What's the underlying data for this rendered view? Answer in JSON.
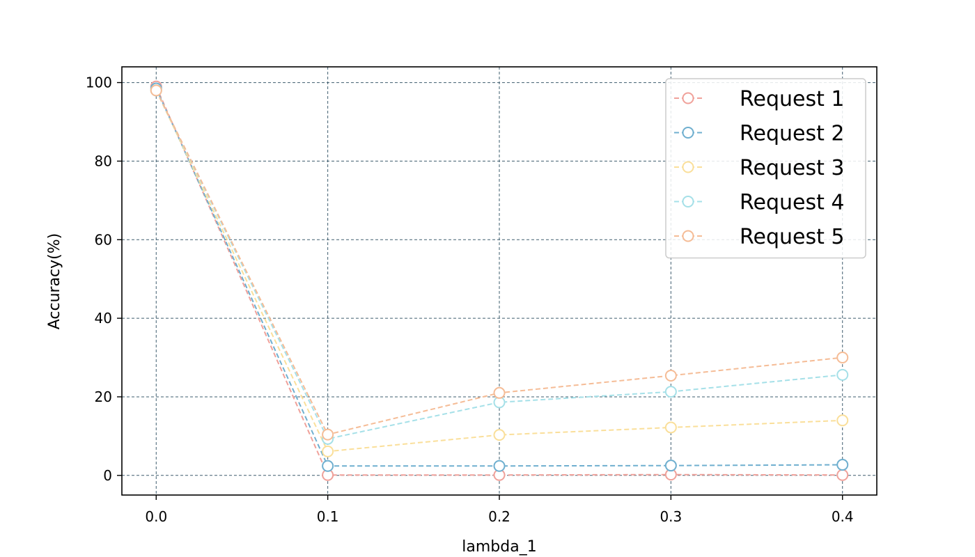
{
  "chart_data": {
    "type": "line",
    "title": "",
    "xlabel": "lambda_1",
    "ylabel": "Accuracy(%)",
    "x": [
      0.0,
      0.1,
      0.2,
      0.3,
      0.4
    ],
    "x_tick_labels": [
      "0.0",
      "0.1",
      "0.2",
      "0.3",
      "0.4"
    ],
    "y_ticks": [
      0,
      20,
      40,
      60,
      80,
      100
    ],
    "y_tick_labels": [
      "0",
      "20",
      "40",
      "60",
      "80",
      "100"
    ],
    "xlim": [
      -0.02,
      0.42
    ],
    "ylim": [
      -5,
      104
    ],
    "grid": true,
    "legend_position": "top-right",
    "series": [
      {
        "name": "Request 1",
        "color": "#F0A19A",
        "values": [
          99.0,
          0.1,
          0.1,
          0.2,
          0.1
        ]
      },
      {
        "name": "Request 2",
        "color": "#6FAFCF",
        "values": [
          98.5,
          2.4,
          2.4,
          2.5,
          2.7
        ]
      },
      {
        "name": "Request 3",
        "color": "#FADF9A",
        "values": [
          98.0,
          6.1,
          10.3,
          12.2,
          14.0
        ]
      },
      {
        "name": "Request 4",
        "color": "#A5E0E8",
        "values": [
          98.0,
          9.3,
          18.6,
          21.3,
          25.6
        ]
      },
      {
        "name": "Request 5",
        "color": "#F5BC96",
        "values": [
          98.0,
          10.4,
          21.0,
          25.4,
          30.0
        ]
      }
    ]
  }
}
